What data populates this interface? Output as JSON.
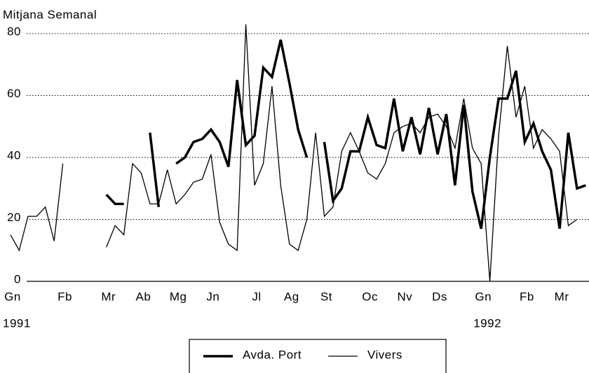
{
  "chart_data": {
    "type": "line",
    "title": "Mitjana Semanal",
    "categories": [
      "Gn",
      null,
      null,
      null,
      null,
      null,
      "Fb",
      null,
      null,
      null,
      null,
      "Mr",
      null,
      null,
      null,
      "Ab",
      null,
      null,
      null,
      "Mg",
      null,
      null,
      null,
      "Jn",
      null,
      null,
      null,
      null,
      "Jl",
      null,
      null,
      null,
      "Ag",
      null,
      null,
      null,
      "St",
      null,
      null,
      null,
      null,
      "Oc",
      null,
      null,
      null,
      "Nv",
      null,
      null,
      null,
      "Ds",
      null,
      null,
      null,
      null,
      "Gn",
      null,
      null,
      null,
      null,
      "Fb",
      null,
      null,
      null,
      "Mr",
      null,
      null,
      null
    ],
    "years": [
      "1991",
      "1992"
    ],
    "series": [
      {
        "name": "Avda. Port",
        "color": "#000000",
        "width": 3.5,
        "values": [
          null,
          null,
          null,
          null,
          null,
          null,
          null,
          null,
          null,
          null,
          null,
          28,
          25,
          25,
          null,
          null,
          48,
          24,
          null,
          38,
          40,
          45,
          46,
          49,
          45,
          37,
          65,
          44,
          47,
          69,
          66,
          78,
          64,
          49,
          40,
          null,
          45,
          26,
          30,
          42,
          42,
          53,
          44,
          43,
          59,
          42,
          53,
          41,
          56,
          41,
          54,
          31,
          57,
          29,
          17,
          40,
          59,
          59,
          68,
          45,
          51,
          42,
          36,
          17,
          48,
          30,
          31
        ]
      },
      {
        "name": "Vivers",
        "color": "#000000",
        "width": 1.3,
        "values": [
          15,
          10,
          21,
          21,
          24,
          13,
          38,
          null,
          null,
          null,
          null,
          11,
          18,
          15,
          38,
          35,
          25,
          25,
          36,
          25,
          28,
          32,
          33,
          41,
          19,
          12,
          10,
          83,
          31,
          38,
          63,
          31,
          12,
          10,
          20,
          48,
          21,
          24,
          42,
          48,
          42,
          35,
          33,
          38,
          48,
          50,
          51,
          48,
          53,
          54,
          50,
          43,
          59,
          43,
          38,
          0,
          47,
          76,
          53,
          63,
          43,
          49,
          46,
          42,
          18,
          20,
          null
        ]
      }
    ],
    "ylim": [
      0,
      80
    ],
    "yticks": [
      0,
      20,
      40,
      60,
      80
    ],
    "grid": true,
    "legend": "bottom"
  }
}
